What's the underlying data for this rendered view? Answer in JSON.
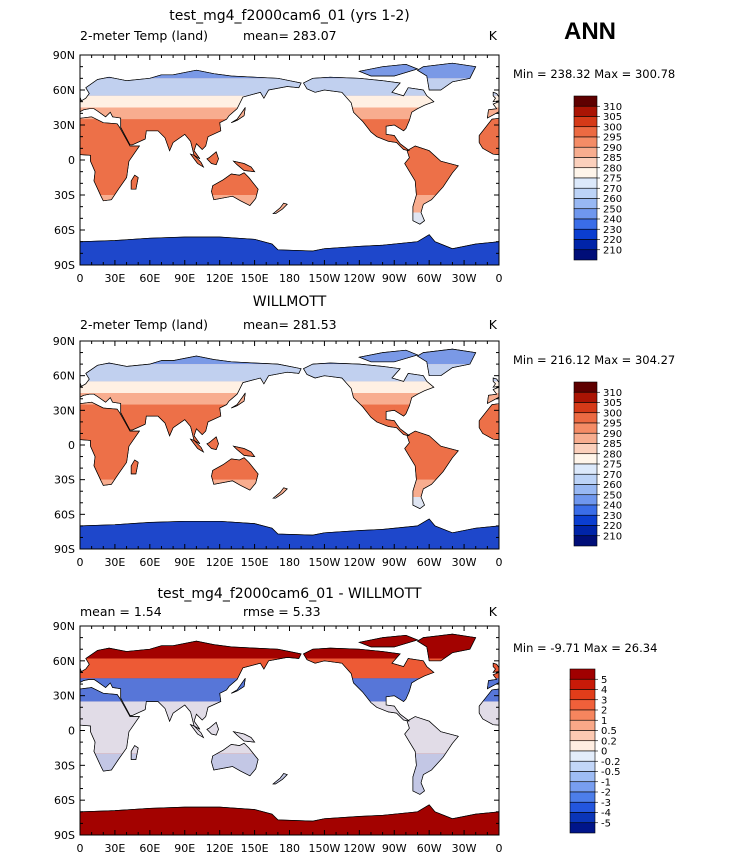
{
  "season": "ANN",
  "land_fill": "#f1a487",
  "chart_data": [
    {
      "type": "heatmap",
      "title": "test_mg4_f2000cam6_01 (yrs 1-2)",
      "left_label": "2-meter Temp (land)",
      "mean_text": "mean= 283.07",
      "units": "K",
      "minmax": "Min = 238.32 Max = 300.78",
      "lat_ticks": [
        "90N",
        "60N",
        "30N",
        "0",
        "30S",
        "60S",
        "90S"
      ],
      "lon_ticks": [
        "0",
        "30E",
        "60E",
        "90E",
        "120E",
        "150E",
        "180",
        "150W",
        "120W",
        "90W",
        "60W",
        "30W",
        "0"
      ],
      "levels": [
        "310",
        "305",
        "300",
        "295",
        "290",
        "285",
        "280",
        "275",
        "270",
        "260",
        "250",
        "240",
        "230",
        "220",
        "210"
      ],
      "colors": [
        "#5e0000",
        "#aa1404",
        "#d53a18",
        "#ec6a42",
        "#f48c66",
        "#f7ad8f",
        "#fbd0bc",
        "#fff5ea",
        "#dce9fb",
        "#bcd3f7",
        "#98b8f3",
        "#6f97ee",
        "#3a6de8",
        "#0b3ed0",
        "#0024a8",
        "#000e78"
      ]
    },
    {
      "type": "heatmap",
      "title": "WILLMOTT",
      "left_label": "2-meter Temp (land)",
      "mean_text": "mean= 281.53",
      "units": "K",
      "minmax": "Min = 216.12 Max = 304.27",
      "lat_ticks": [
        "90N",
        "60N",
        "30N",
        "0",
        "30S",
        "60S",
        "90S"
      ],
      "lon_ticks": [
        "0",
        "30E",
        "60E",
        "90E",
        "120E",
        "150E",
        "180",
        "150W",
        "120W",
        "90W",
        "60W",
        "30W",
        "0"
      ],
      "levels": [
        "310",
        "305",
        "300",
        "295",
        "290",
        "285",
        "280",
        "275",
        "270",
        "260",
        "250",
        "240",
        "230",
        "220",
        "210"
      ],
      "colors": [
        "#5e0000",
        "#aa1404",
        "#d53a18",
        "#ec6a42",
        "#f48c66",
        "#f7ad8f",
        "#fbd0bc",
        "#fff5ea",
        "#dce9fb",
        "#bcd3f7",
        "#98b8f3",
        "#6f97ee",
        "#3a6de8",
        "#0b3ed0",
        "#0024a8",
        "#000e78"
      ]
    },
    {
      "type": "heatmap",
      "title": "test_mg4_f2000cam6_01 - WILLMOTT",
      "left_label": "mean =    1.54",
      "mean_text": "rmse =    5.33",
      "units": "K",
      "minmax": "Min =   -9.71 Max =   26.34",
      "lat_ticks": [
        "90N",
        "60N",
        "30N",
        "0",
        "30S",
        "60S",
        "90S"
      ],
      "lon_ticks": [
        "0",
        "30E",
        "60E",
        "90E",
        "120E",
        "150E",
        "180",
        "150W",
        "120W",
        "90W",
        "60W",
        "30W",
        "0"
      ],
      "levels": [
        "5",
        "4",
        "3",
        "2",
        "1",
        "0.5",
        "0.2",
        "0",
        "-0.2",
        "-0.5",
        "-1",
        "-2",
        "-3",
        "-4",
        "-5"
      ],
      "colors": [
        "#a00000",
        "#c81a08",
        "#e13d1a",
        "#f0603a",
        "#f6855e",
        "#f9a888",
        "#fcc9b2",
        "#ffeee2",
        "#e3edfb",
        "#c2d6f8",
        "#9ebcf4",
        "#789ef0",
        "#4d7eea",
        "#2356de",
        "#0a35b8",
        "#00158a"
      ]
    }
  ]
}
